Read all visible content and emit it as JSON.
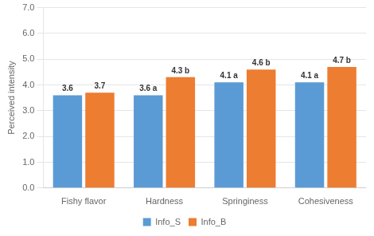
{
  "chart_data": {
    "type": "bar",
    "ylabel": "Perceived intensity",
    "categories": [
      "Fishy flavor",
      "Hardness",
      "Springiness",
      "Cohesiveness"
    ],
    "series": [
      {
        "name": "Info_S",
        "color": "#5B9BD5",
        "values": [
          3.6,
          3.6,
          4.1,
          4.1
        ],
        "value_labels": [
          "3.6",
          "3.6 a",
          "4.1 a",
          "4.1 a"
        ]
      },
      {
        "name": "Info_B",
        "color": "#ED7D31",
        "values": [
          3.7,
          4.3,
          4.6,
          4.7
        ],
        "value_labels": [
          "3.7",
          "4.3 b",
          "4.6 b",
          "4.7 b"
        ]
      }
    ],
    "ylim": [
      0.0,
      7.0
    ],
    "yticks": [
      {
        "value": 0,
        "label": "0.0"
      },
      {
        "value": 1,
        "label": "1.0"
      },
      {
        "value": 2,
        "label": "2.0"
      },
      {
        "value": 3,
        "label": "3.0"
      },
      {
        "value": 4,
        "label": "4.0"
      },
      {
        "value": 5,
        "label": "5.0"
      },
      {
        "value": 6,
        "label": "6.0"
      },
      {
        "value": 7,
        "label": "7.0"
      }
    ],
    "grid": true,
    "legend": "bottom",
    "data_labels": true
  }
}
